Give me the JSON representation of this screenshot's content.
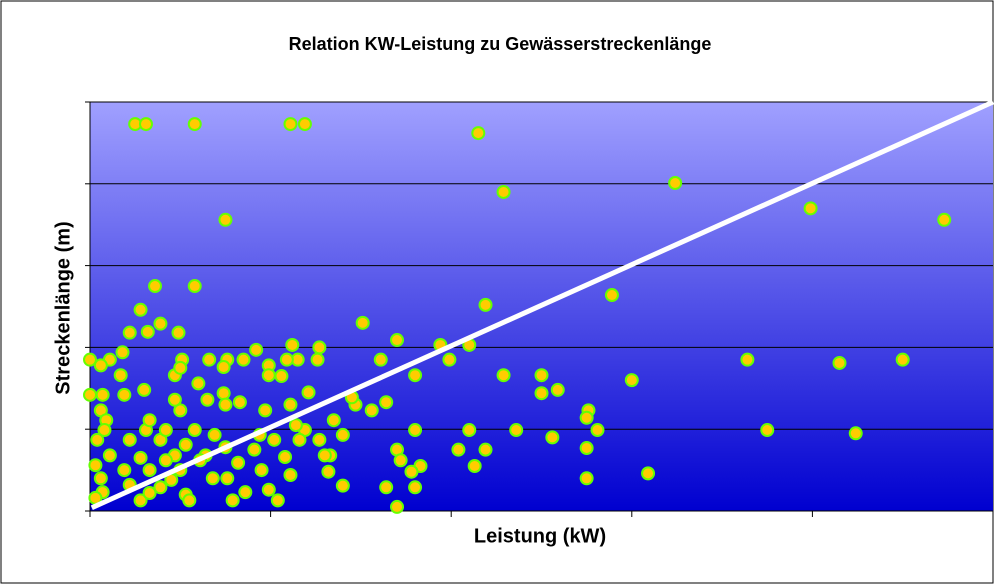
{
  "chart_data": {
    "type": "scatter",
    "title": "Relation KW-Leistung zu Gewässerstreckenlänge",
    "x_label": "Leistung (kW)",
    "y_label": "Streckenlänge (m)",
    "xlim": [
      0,
      5
    ],
    "ylim": [
      0,
      5
    ],
    "xticks": [
      0,
      1,
      2,
      3,
      4,
      5
    ],
    "yticks": [
      0,
      1,
      2,
      3,
      4,
      5
    ],
    "grid": true,
    "color": "#ffcc00",
    "edge_color": "#66ff00",
    "trendline": {
      "color": "#ffffff",
      "x": [
        0.01,
        5
      ],
      "y": [
        0.04,
        5
      ]
    },
    "x": [
      0.25,
      0.31,
      0.58,
      1.11,
      1.19,
      2.15,
      2.29,
      3.24,
      3.99,
      4.73,
      0.75,
      0.36,
      0.58,
      2.19,
      2.89,
      1.51,
      1.94,
      2.1,
      1.7,
      1.99,
      1.61,
      1.8,
      2.29,
      2.5,
      3.0,
      3.64,
      4.15,
      4.5,
      2.5,
      2.59,
      2.76,
      2.75,
      2.81,
      2.36,
      2.1,
      2.56,
      2.75,
      3.75,
      4.24,
      2.19,
      2.04,
      2.13,
      2.75,
      3.09,
      1.8,
      1.83,
      1.7,
      1.72,
      1.78,
      1.64,
      1.8,
      1.7,
      1.64,
      1.56,
      1.47,
      1.45,
      1.35,
      1.4,
      1.33,
      1.4,
      1.27,
      1.3,
      1.32,
      1.19,
      1.12,
      1.27,
      1.26,
      1.15,
      1.09,
      0.99,
      0.92,
      0.85,
      0.76,
      0.66,
      0.51,
      0.49,
      0.39,
      0.22,
      0.32,
      0.28,
      0.74,
      0.99,
      1.06,
      1.21,
      1.11,
      0.97,
      0.83,
      0.74,
      0.75,
      0.65,
      0.6,
      0.5,
      0.47,
      0.47,
      0.5,
      0.3,
      0.19,
      0.17,
      0.11,
      0.06,
      0.0,
      0.18,
      0.0,
      0.07,
      0.06,
      0.09,
      0.04,
      0.08,
      0.03,
      0.06,
      0.07,
      0.03,
      0.11,
      0.19,
      0.22,
      0.28,
      0.33,
      0.39,
      0.45,
      0.53,
      0.55,
      0.33,
      0.28,
      0.22,
      0.31,
      0.39,
      0.33,
      0.42,
      0.47,
      0.53,
      0.58,
      0.64,
      0.68,
      0.76,
      0.79,
      0.86,
      0.75,
      0.82,
      0.91,
      0.95,
      0.99,
      1.04,
      1.08,
      1.11,
      1.14,
      1.16,
      1.02,
      0.94,
      0.69,
      0.61,
      0.5,
      0.42
    ],
    "values": [
      4.73,
      4.73,
      4.73,
      4.73,
      4.73,
      4.62,
      3.9,
      4.01,
      3.7,
      3.56,
      3.56,
      2.75,
      2.75,
      2.52,
      2.64,
      2.3,
      2.03,
      2.03,
      2.09,
      1.85,
      1.85,
      1.66,
      1.66,
      1.66,
      1.6,
      1.85,
      1.81,
      1.85,
      1.44,
      1.48,
      1.23,
      1.14,
      0.99,
      0.99,
      0.99,
      0.9,
      0.77,
      0.99,
      0.95,
      0.75,
      0.75,
      0.55,
      0.4,
      0.46,
      0.99,
      0.55,
      0.75,
      0.62,
      0.48,
      0.29,
      0.29,
      0.05,
      1.33,
      1.23,
      1.3,
      1.39,
      1.11,
      0.93,
      0.68,
      0.31,
      0.87,
      0.68,
      0.48,
      0.99,
      2.03,
      2.0,
      1.85,
      1.85,
      1.85,
      1.78,
      1.97,
      1.85,
      1.85,
      1.85,
      1.85,
      2.18,
      2.29,
      2.18,
      2.19,
      2.46,
      1.76,
      1.66,
      1.65,
      1.45,
      1.3,
      1.23,
      1.33,
      1.44,
      1.3,
      1.36,
      1.56,
      1.23,
      1.36,
      1.66,
      1.75,
      1.48,
      1.42,
      1.66,
      1.85,
      1.78,
      1.85,
      1.94,
      1.42,
      1.42,
      1.23,
      1.11,
      0.87,
      0.99,
      0.56,
      0.4,
      0.23,
      0.16,
      0.68,
      0.5,
      0.32,
      0.13,
      0.22,
      0.29,
      0.38,
      0.2,
      0.13,
      0.5,
      0.65,
      0.87,
      0.99,
      0.87,
      1.11,
      0.99,
      0.68,
      0.81,
      0.99,
      0.68,
      0.4,
      0.4,
      0.13,
      0.23,
      0.78,
      0.59,
      0.75,
      0.5,
      0.26,
      0.13,
      0.66,
      0.44,
      1.05,
      0.87,
      0.87,
      0.93,
      0.93,
      0.62,
      0.5,
      0.62
    ]
  }
}
